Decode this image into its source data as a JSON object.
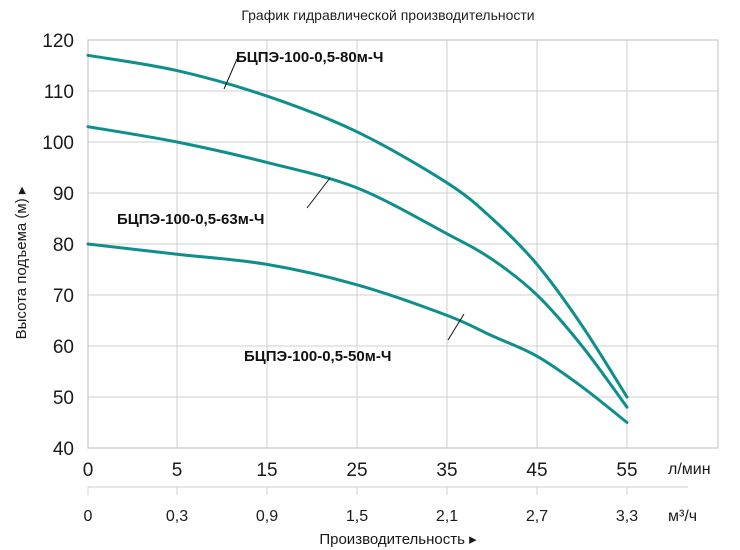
{
  "chart_data": {
    "type": "line",
    "title": "График гидравлической производительности",
    "ylabel": "Высота подъема (м) ▸",
    "xlabel": "Производительность ▸",
    "x_unit_primary": "л/мин",
    "x_unit_secondary": "м³/ч",
    "ylim": [
      40,
      120
    ],
    "yticks": [
      "40",
      "50",
      "60",
      "70",
      "80",
      "90",
      "100",
      "110",
      "120"
    ],
    "xticks_primary": [
      "0",
      "5",
      "15",
      "25",
      "35",
      "45",
      "55"
    ],
    "xticks_secondary": [
      "0",
      "0,3",
      "0,9",
      "1,5",
      "2,1",
      "2,7",
      "3,3"
    ],
    "grid": true,
    "line_color": "#0e8f8c",
    "series": [
      {
        "name": "БЦПЭ-100-0,5-80м-Ч",
        "points": [
          [
            0,
            117
          ],
          [
            5,
            114
          ],
          [
            15,
            109
          ],
          [
            25,
            102
          ],
          [
            35,
            92
          ],
          [
            40,
            85
          ],
          [
            45,
            76
          ],
          [
            50,
            64
          ],
          [
            55,
            50
          ]
        ]
      },
      {
        "name": "БЦПЭ-100-0,5-63м-Ч",
        "points": [
          [
            0,
            103
          ],
          [
            5,
            100
          ],
          [
            15,
            96
          ],
          [
            25,
            91
          ],
          [
            35,
            82
          ],
          [
            40,
            77
          ],
          [
            45,
            70
          ],
          [
            50,
            60
          ],
          [
            55,
            48
          ]
        ]
      },
      {
        "name": "БЦПЭ-100-0,5-50м-Ч",
        "points": [
          [
            0,
            80
          ],
          [
            5,
            78
          ],
          [
            15,
            76
          ],
          [
            25,
            72
          ],
          [
            35,
            66
          ],
          [
            40,
            62
          ],
          [
            45,
            58
          ],
          [
            50,
            52
          ],
          [
            55,
            45
          ]
        ]
      }
    ]
  }
}
